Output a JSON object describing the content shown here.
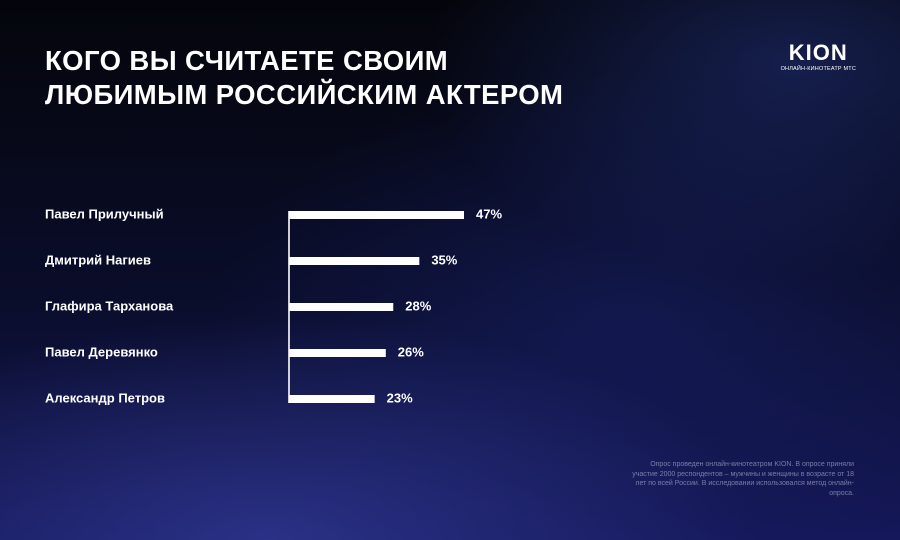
{
  "header": {
    "title_line1": "КОГО ВЫ СЧИТАЕТЕ СВОИМ",
    "title_line2": "ЛЮБИМЫМ РОССИЙСКИМ АКТЕРОМ"
  },
  "brand": {
    "logo": "KION",
    "tagline": "ОНЛАЙН-КИНОТЕАТР МТС"
  },
  "chart_data": {
    "type": "bar",
    "orientation": "horizontal",
    "title": "КОГО ВЫ СЧИТАЕТЕ СВОИМ ЛЮБИМЫМ РОССИЙСКИМ АКТЕРОМ",
    "categories": [
      "Павел Прилучный",
      "Дмитрий Нагиев",
      "Глафира Тарханова",
      "Павел Деревянко",
      "Александр Петров"
    ],
    "values": [
      47,
      35,
      28,
      26,
      23
    ],
    "value_labels": [
      "47%",
      "35%",
      "28%",
      "26%",
      "23%"
    ],
    "unit": "%",
    "xlim": [
      0,
      47
    ],
    "grid": false,
    "legend": "none",
    "bar_color": "#ffffff"
  },
  "footnote": "Опрос проведен онлайн-кинотеатром KION. В опросе приняли участие 2000 респондентов – мужчины и женщины в возрасте от 18 лет по всей России. В исследовании использовался метод онлайн-опроса."
}
